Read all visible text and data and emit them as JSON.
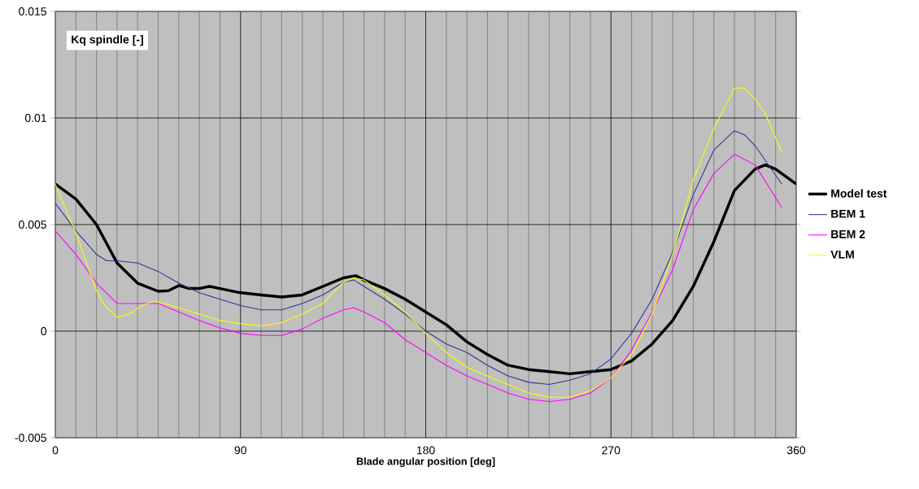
{
  "chart_data": {
    "type": "line",
    "ylabel": "Kq spindle [-]",
    "xlabel": "Blade angular position [deg]",
    "xlim": [
      0,
      360
    ],
    "ylim": [
      -0.005,
      0.015
    ],
    "xticks": [
      0,
      {
        "value": 10,
        "label": null
      },
      {
        "value": 20,
        "label": null
      },
      {
        "value": 30,
        "label": null
      },
      {
        "value": 40,
        "label": null
      },
      {
        "value": 50,
        "label": null
      },
      {
        "value": 60,
        "label": null
      },
      {
        "value": 70,
        "label": null
      },
      {
        "value": 80,
        "label": null
      },
      90,
      {
        "value": 100,
        "label": null
      },
      {
        "value": 110,
        "label": null
      },
      {
        "value": 120,
        "label": null
      },
      {
        "value": 130,
        "label": null
      },
      {
        "value": 140,
        "label": null
      },
      {
        "value": 150,
        "label": null
      },
      {
        "value": 160,
        "label": null
      },
      {
        "value": 170,
        "label": null
      },
      180,
      {
        "value": 190,
        "label": null
      },
      {
        "value": 200,
        "label": null
      },
      {
        "value": 210,
        "label": null
      },
      {
        "value": 220,
        "label": null
      },
      {
        "value": 230,
        "label": null
      },
      {
        "value": 240,
        "label": null
      },
      {
        "value": 250,
        "label": null
      },
      {
        "value": 260,
        "label": null
      },
      270,
      {
        "value": 280,
        "label": null
      },
      {
        "value": 290,
        "label": null
      },
      {
        "value": 300,
        "label": null
      },
      {
        "value": 310,
        "label": null
      },
      {
        "value": 320,
        "label": null
      },
      {
        "value": 330,
        "label": null
      },
      {
        "value": 340,
        "label": null
      },
      {
        "value": 350,
        "label": null
      },
      360
    ],
    "yticks": [
      -0.005,
      0,
      0.005,
      0.01,
      0.015
    ],
    "grid": true,
    "legend": "right",
    "marker": "none",
    "series": [
      {
        "name": "Model test",
        "color": "#000000",
        "x": [
          0,
          10,
          20,
          30,
          40,
          50,
          55,
          60,
          65,
          70,
          75,
          80,
          90,
          100,
          110,
          120,
          130,
          140,
          146,
          150,
          160,
          170,
          180,
          190,
          200,
          210,
          220,
          230,
          240,
          250,
          260,
          270,
          280,
          290,
          300,
          310,
          320,
          330,
          340,
          345,
          350,
          360
        ],
        "values": [
          0.0069,
          0.0062,
          0.005,
          0.0032,
          0.00225,
          0.00187,
          0.0019,
          0.00214,
          0.002,
          0.002,
          0.0021,
          0.002,
          0.0018,
          0.0017,
          0.0016,
          0.0017,
          0.0021,
          0.0025,
          0.0026,
          0.0024,
          0.002,
          0.0015,
          0.0009,
          0.0003,
          -0.0005,
          -0.0011,
          -0.0016,
          -0.0018,
          -0.0019,
          -0.002,
          -0.0019,
          -0.0018,
          -0.0014,
          -0.0006,
          0.0005,
          0.0021,
          0.0042,
          0.0066,
          0.0076,
          0.0078,
          0.0076,
          0.0069
        ]
      },
      {
        "name": "BEM 1",
        "color": "#333399",
        "x": [
          0,
          10,
          20,
          25,
          30,
          40,
          50,
          60,
          70,
          80,
          90,
          100,
          110,
          120,
          130,
          140,
          145,
          150,
          160,
          170,
          180,
          190,
          200,
          210,
          220,
          230,
          240,
          250,
          260,
          270,
          280,
          290,
          300,
          310,
          320,
          330,
          335,
          340,
          353
        ],
        "values": [
          0.006,
          0.0047,
          0.0036,
          0.0033,
          0.0033,
          0.0032,
          0.0028,
          0.00225,
          0.0018,
          0.0015,
          0.0012,
          0.001,
          0.001,
          0.0013,
          0.0017,
          0.0023,
          0.0024,
          0.0021,
          0.0015,
          0.0008,
          0.0,
          -0.0006,
          -0.001,
          -0.0016,
          -0.0021,
          -0.0024,
          -0.0025,
          -0.0023,
          -0.002,
          -0.0013,
          -0.0001,
          0.0015,
          0.0037,
          0.0064,
          0.0085,
          0.0094,
          0.0092,
          0.0087,
          0.0069
        ]
      },
      {
        "name": "BEM 2",
        "color": "#ff00ff",
        "x": [
          0,
          10,
          20,
          30,
          40,
          50,
          60,
          70,
          80,
          90,
          100,
          110,
          120,
          130,
          140,
          145,
          150,
          160,
          170,
          180,
          190,
          200,
          210,
          220,
          230,
          240,
          250,
          260,
          270,
          280,
          290,
          300,
          310,
          320,
          330,
          340,
          353
        ],
        "values": [
          0.0047,
          0.0036,
          0.00225,
          0.0013,
          0.0013,
          0.0013,
          0.0009,
          0.0005,
          0.00015,
          -0.0001,
          -0.0002,
          -0.0002,
          0.0001,
          0.0006,
          0.001,
          0.0011,
          0.0009,
          0.0004,
          -0.0004,
          -0.001,
          -0.0016,
          -0.0021,
          -0.0025,
          -0.0029,
          -0.0032,
          -0.0033,
          -0.0032,
          -0.0029,
          -0.0022,
          -0.0009,
          0.0009,
          0.0029,
          0.0057,
          0.0074,
          0.0083,
          0.0078,
          0.0058
        ]
      },
      {
        "name": "VLM",
        "color": "#ffff00",
        "x": [
          0,
          10,
          20,
          24,
          30,
          36,
          42,
          48,
          53,
          60,
          70,
          80,
          90,
          100,
          110,
          120,
          130,
          140,
          145,
          150,
          160,
          170,
          180,
          190,
          200,
          210,
          220,
          230,
          240,
          250,
          260,
          270,
          280,
          290,
          300,
          310,
          320,
          330,
          335,
          340,
          345,
          353
        ],
        "values": [
          0.0069,
          0.0046,
          0.0019,
          0.0012,
          0.00065,
          0.0008,
          0.0012,
          0.0014,
          0.0013,
          0.0011,
          0.0008,
          0.0005,
          0.00035,
          0.00025,
          0.0004,
          0.0008,
          0.0013,
          0.0023,
          0.0025,
          0.0024,
          0.0017,
          0.0009,
          -0.0001,
          -0.001,
          -0.0017,
          -0.0021,
          -0.0025,
          -0.0029,
          -0.0031,
          -0.0031,
          -0.0028,
          -0.0022,
          -0.0011,
          0.0008,
          0.0036,
          0.0071,
          0.0095,
          0.0114,
          0.0114,
          0.0109,
          0.0102,
          0.0084
        ]
      }
    ]
  }
}
